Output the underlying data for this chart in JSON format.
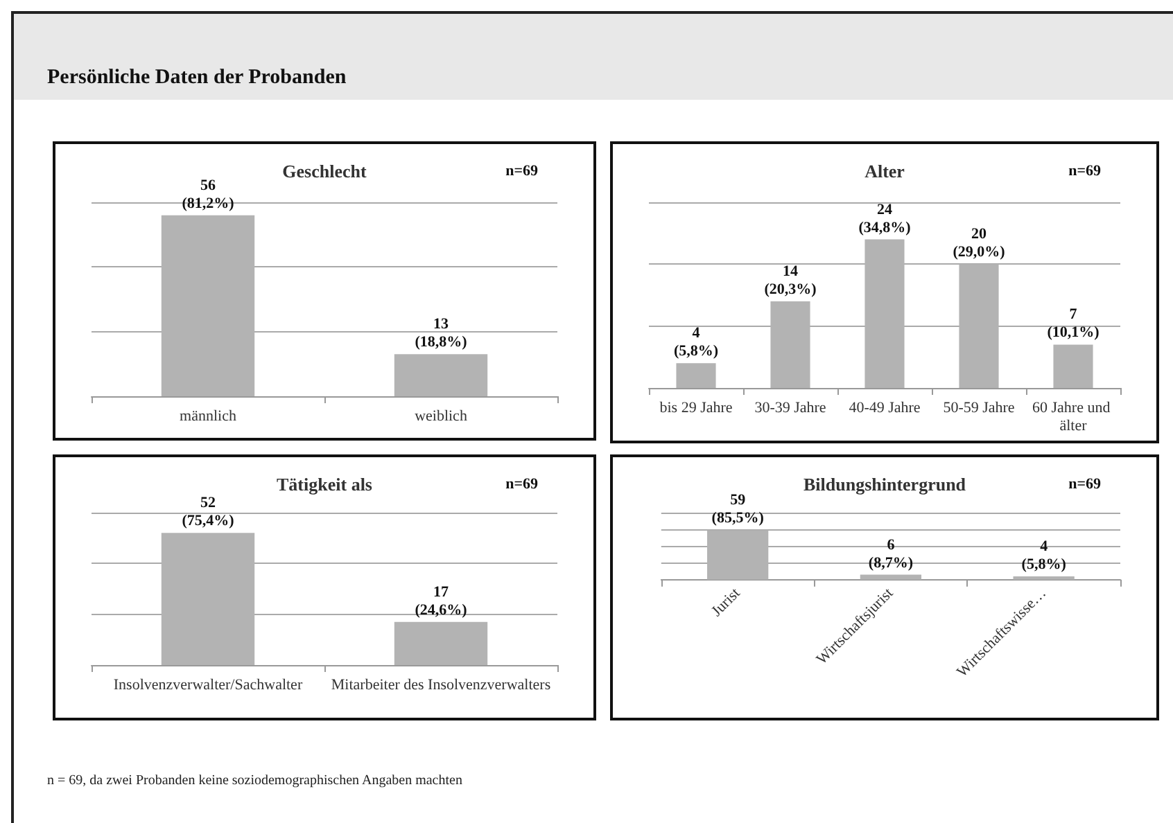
{
  "chart_data": [
    {
      "type": "bar",
      "title": "Geschlecht",
      "categories": [
        "männlich",
        "weiblich"
      ],
      "values": [
        56,
        13
      ],
      "value_labels": [
        "56\n(81,2%)",
        "13\n(18,8%)"
      ],
      "color": "#b3b3b3",
      "ylim": [
        0,
        60
      ],
      "yticks": [
        0,
        20,
        40,
        60
      ],
      "tick_labels": "x",
      "grid": "y",
      "annotations": [
        "n=69",
        "Persönliche Daten der Probanden"
      ]
    },
    {
      "type": "bar",
      "title": "Alter",
      "categories": [
        "bis 29 Jahre",
        "30-39 Jahre",
        "40-49 Jahre",
        "50-59 Jahre",
        "60 Jahre und älter"
      ],
      "values": [
        4,
        14,
        24,
        20,
        7
      ],
      "value_labels": [
        "4\n(5,8%)",
        "14\n(20,3%)",
        "24\n(34,8%)",
        "20\n(29,0%)",
        "7\n(10,1%)"
      ],
      "color": "#b3b3b3",
      "ylim": [
        0,
        30
      ],
      "yticks": [
        0,
        10,
        20,
        30
      ],
      "tick_labels": "x",
      "grid": "y",
      "annotations": [
        "n=69"
      ]
    },
    {
      "type": "bar",
      "title": "Tätigkeit als",
      "categories": [
        "Insolvenzverwalter/Sachwalter",
        "Mitarbeiter des Insolvenzverwalters"
      ],
      "values": [
        52,
        17
      ],
      "value_labels": [
        "52\n(75,4%)",
        "17\n(24,6%)"
      ],
      "color": "#b3b3b3",
      "ylim": [
        0,
        60
      ],
      "yticks": [
        0,
        20,
        40,
        60
      ],
      "tick_labels": "x",
      "grid": "y",
      "annotations": [
        "n=69"
      ]
    },
    {
      "type": "bar",
      "title": "Bildungshintergrund",
      "categories": [
        "Jurist",
        "Wirtschaftsjurist",
        "Wirtschaftswisse…"
      ],
      "values": [
        59,
        6,
        4
      ],
      "value_labels": [
        "59\n(85,5%)",
        "6\n(8,7%)",
        "4\n(5,8%)"
      ],
      "color": "#b3b3b3",
      "ylim": [
        0,
        80
      ],
      "yticks": [
        0,
        20,
        40,
        60,
        80
      ],
      "tick_labels": "x",
      "grid": "y",
      "annotations": [
        "n=69",
        "n = 69, da zwei Probanden keine soziodemographischen  Angaben machten"
      ]
    }
  ]
}
